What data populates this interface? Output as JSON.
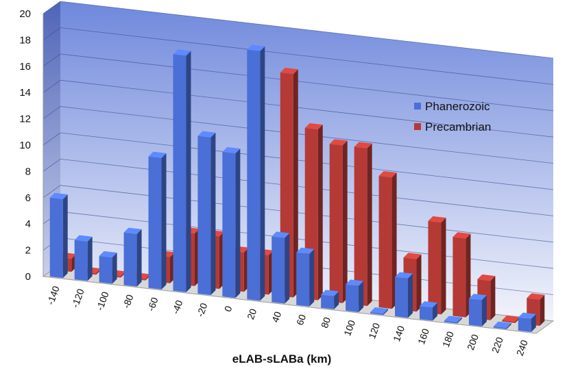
{
  "chart_data": {
    "type": "bar",
    "title": "",
    "xlabel": "eLAB-sLABa (km)",
    "ylabel": "",
    "ylim": [
      0,
      20
    ],
    "yticks": [
      0,
      2,
      4,
      6,
      8,
      10,
      12,
      14,
      16,
      18,
      20
    ],
    "grid": true,
    "legend_position": "right",
    "categories": [
      "-140",
      "-120",
      "-100",
      "-80",
      "-60",
      "-40",
      "-20",
      "0",
      "20",
      "40",
      "60",
      "80",
      "100",
      "120",
      "140",
      "160",
      "180",
      "200",
      "220",
      "240"
    ],
    "series": [
      {
        "name": "Phanerozoic",
        "color": "#4a6fd6",
        "values": [
          6,
          3,
          2,
          4,
          10,
          18,
          12,
          11,
          19,
          5,
          4,
          1,
          2,
          0,
          3,
          1,
          0,
          2,
          0,
          1
        ]
      },
      {
        "name": "Precambrian",
        "color": "#b53a35",
        "values": [
          1,
          0,
          0,
          0,
          2,
          4,
          4,
          3,
          3,
          17,
          13,
          12,
          12,
          10,
          4,
          7,
          6,
          3,
          0,
          2
        ]
      }
    ]
  }
}
